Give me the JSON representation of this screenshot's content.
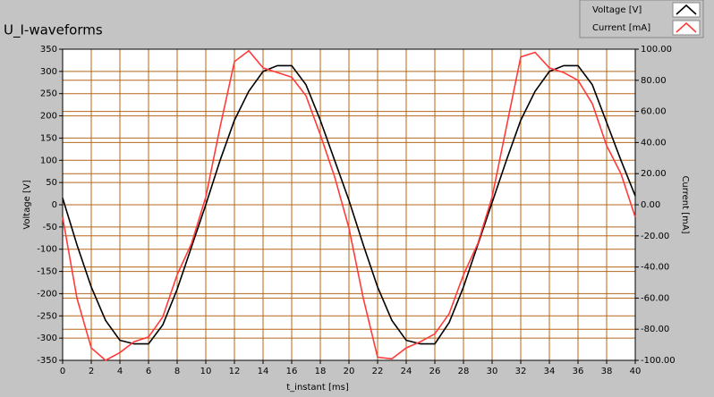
{
  "chart_data": {
    "type": "line",
    "title": "U_I-waveforms",
    "xlabel": "t_instant [ms]",
    "ylabel": "Voltage [V]",
    "y2label": "Current [mA]",
    "x": [
      0,
      1,
      2,
      3,
      4,
      5,
      6,
      7,
      8,
      9,
      10,
      11,
      12,
      13,
      14,
      15,
      16,
      17,
      18,
      19,
      20,
      21,
      22,
      23,
      24,
      25,
      26,
      27,
      28,
      29,
      30,
      31,
      32,
      33,
      34,
      35,
      36,
      37,
      38,
      39,
      40
    ],
    "series": [
      {
        "name": "Voltage [V]",
        "color": "#000000",
        "values": [
          15,
          -90,
          -185,
          -260,
          -305,
          -313,
          -313,
          -270,
          -190,
          -95,
          0,
          100,
          190,
          255,
          300,
          313,
          313,
          270,
          190,
          100,
          10,
          -90,
          -185,
          -260,
          -305,
          -313,
          -313,
          -265,
          -185,
          -90,
          5,
          100,
          190,
          255,
          300,
          313,
          313,
          270,
          185,
          100,
          20
        ]
      },
      {
        "name": "Current [mA]",
        "color": "#ff3b3b",
        "axis": "y2",
        "values": [
          -8,
          -60,
          -92,
          -100,
          -95,
          -88,
          -85,
          -72,
          -45,
          -25,
          5,
          50,
          92,
          99,
          88,
          85,
          82,
          70,
          45,
          18,
          -15,
          -60,
          -98,
          -99,
          -92,
          -88,
          -83,
          -70,
          -45,
          -25,
          5,
          50,
          95,
          98,
          88,
          85,
          80,
          65,
          38,
          20,
          -8
        ]
      }
    ],
    "xlim": [
      0,
      40
    ],
    "xticks": [
      0,
      2,
      4,
      6,
      8,
      10,
      12,
      14,
      16,
      18,
      20,
      22,
      24,
      26,
      28,
      30,
      32,
      34,
      36,
      38,
      40
    ],
    "ylim": [
      -350,
      350
    ],
    "yticks": [
      -350,
      -300,
      -250,
      -200,
      -150,
      -100,
      -50,
      0,
      50,
      100,
      150,
      200,
      250,
      300,
      350
    ],
    "y2lim": [
      -100,
      100
    ],
    "y2ticks": [
      {
        "value": -100,
        "label": "-100.00"
      },
      {
        "value": -80,
        "label": "-80.00"
      },
      {
        "value": -60,
        "label": "-60.00"
      },
      {
        "value": -40,
        "label": "-40.00"
      },
      {
        "value": -20,
        "label": "-20.00"
      },
      {
        "value": 0,
        "label": "0.00"
      },
      {
        "value": 20,
        "label": "20.00"
      },
      {
        "value": 40,
        "label": "40.00"
      },
      {
        "value": 60,
        "label": "60.00"
      },
      {
        "value": 80,
        "label": "80.00"
      },
      {
        "value": 100,
        "label": "100.00"
      }
    ],
    "grid": true,
    "grid_color": "#b5671c",
    "legend": "top-right"
  }
}
